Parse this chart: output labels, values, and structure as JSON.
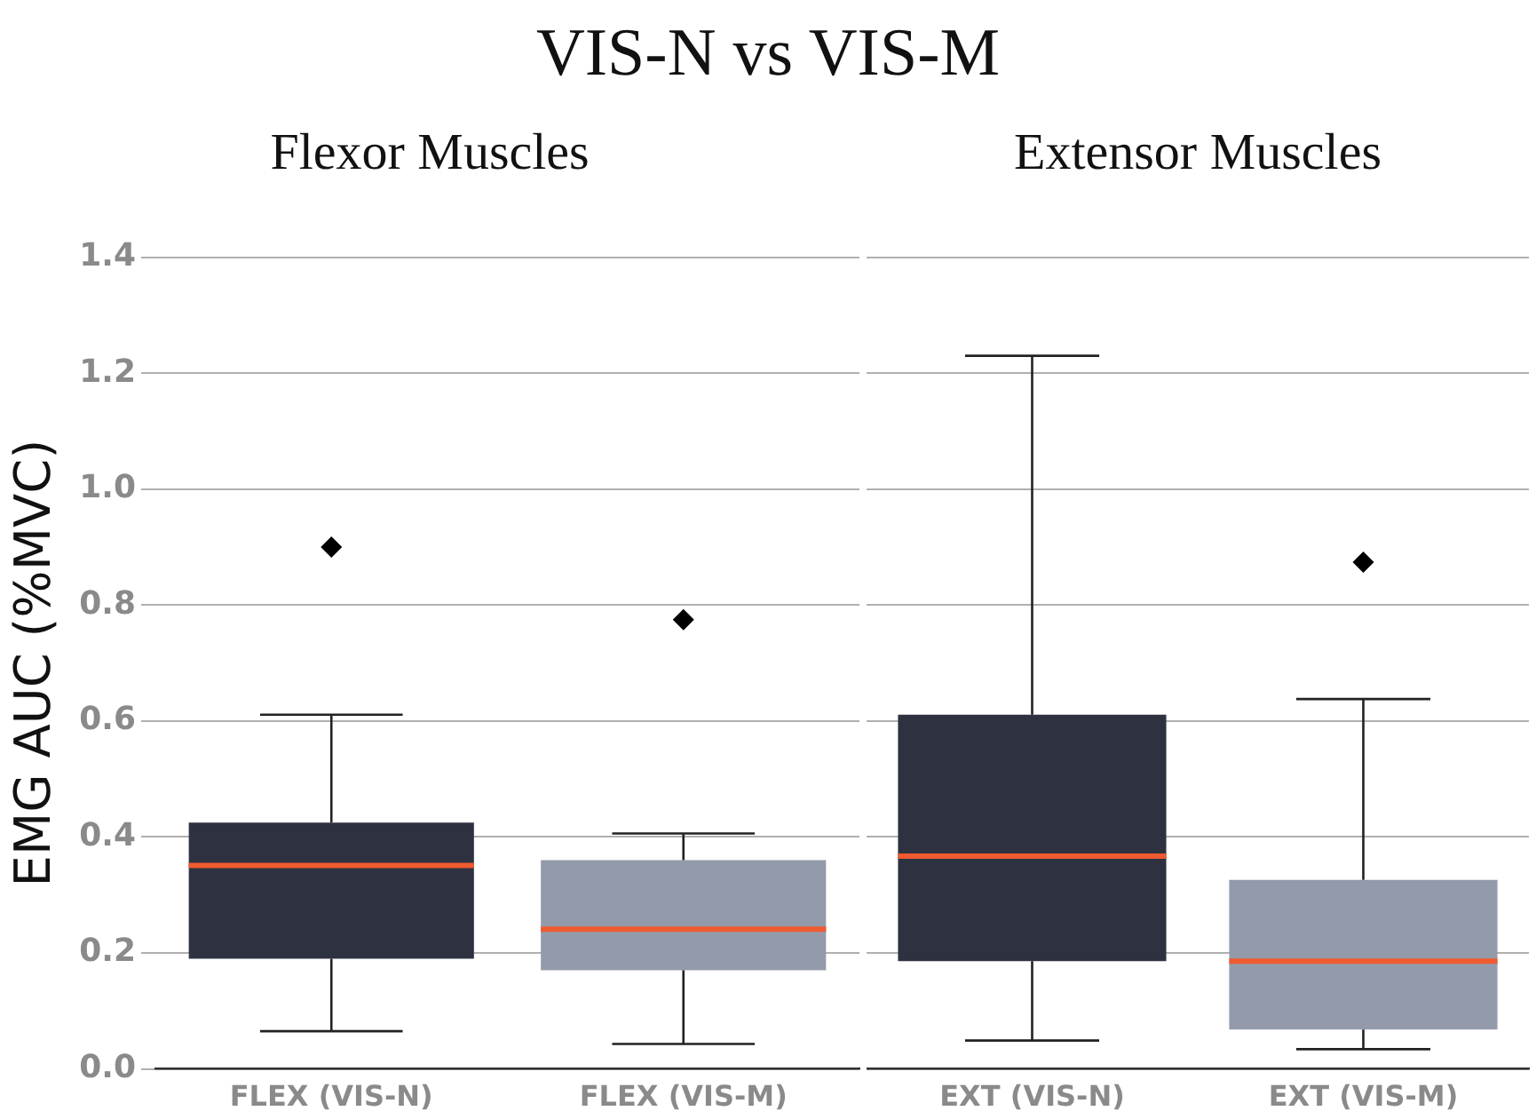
{
  "chart_data": [
    {
      "type": "box",
      "title": "Flexor Muscles",
      "annotations": [
        "VIS-N vs VIS-M"
      ],
      "ylabel": "EMG AUC (%MVC)",
      "categories": [
        "FLEX (VIS-N)",
        "FLEX (VIS-M)"
      ],
      "colors": [
        "#2e3140",
        "#939aaa"
      ],
      "boxes": [
        {
          "low": 0.065,
          "q1": 0.19,
          "median": 0.351,
          "q3": 0.425,
          "high": 0.611,
          "outliers": [
            0.9
          ]
        },
        {
          "low": 0.043,
          "q1": 0.17,
          "median": 0.241,
          "q3": 0.36,
          "high": 0.406,
          "outliers": [
            0.775
          ]
        }
      ],
      "ylim": [
        0,
        1.4
      ],
      "yticks": [
        {
          "value": 0,
          "label": "0.0"
        },
        0.2,
        0.4,
        0.6,
        0.8,
        {
          "value": 1,
          "label": "1.0"
        },
        1.2,
        1.4
      ],
      "grid": "y",
      "marker": "diamond"
    },
    {
      "type": "box",
      "title": "Extensor Muscles",
      "categories": [
        "EXT (VIS-N)",
        "EXT (VIS-M)"
      ],
      "colors": [
        "#2e3140",
        "#939aaa"
      ],
      "boxes": [
        {
          "low": 0.049,
          "q1": 0.186,
          "median": 0.367,
          "q3": 0.611,
          "high": 1.23
        },
        {
          "low": 0.034,
          "q1": 0.068,
          "median": 0.186,
          "q3": 0.326,
          "high": 0.638,
          "outliers": [
            0.874
          ]
        }
      ],
      "ylim": [
        0,
        1.4
      ],
      "yticks": [
        0,
        0.2,
        0.4,
        0.6,
        0.8,
        1,
        1.2,
        1.4
      ],
      "tick_labels": "x",
      "grid": "y",
      "marker": "diamond"
    }
  ]
}
